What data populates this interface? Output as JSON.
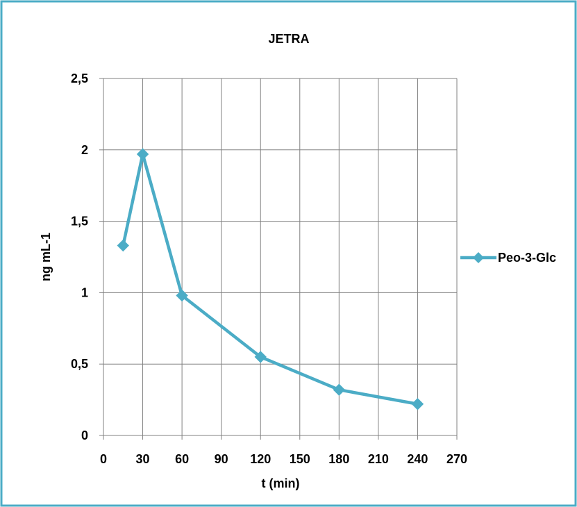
{
  "chart_data": {
    "type": "line",
    "title": "JETRA",
    "xlabel": "t (min)",
    "ylabel": "ng mL-1",
    "xlim": [
      0,
      270
    ],
    "ylim": [
      0,
      2.5
    ],
    "x_ticks": [
      0,
      30,
      60,
      90,
      120,
      150,
      180,
      210,
      240,
      270
    ],
    "x_tick_labels": [
      "0",
      "30",
      "60",
      "90",
      "120",
      "150",
      "180",
      "210",
      "240",
      "270"
    ],
    "y_ticks": [
      0,
      0.5,
      1,
      1.5,
      2,
      2.5
    ],
    "y_tick_labels": [
      "0",
      "0,5",
      "1",
      "1,5",
      "2",
      "2,5"
    ],
    "grid": true,
    "legend_position": "right",
    "series": [
      {
        "name": "Peo-3-Glc",
        "color": "#4BACC6",
        "marker": "diamond",
        "x": [
          15,
          30,
          60,
          120,
          180,
          240
        ],
        "y": [
          1.33,
          1.97,
          0.98,
          0.55,
          0.32,
          0.22
        ]
      }
    ]
  },
  "colors": {
    "frame_border": "#4BACC6",
    "grid": "#808080",
    "axis": "#808080"
  }
}
